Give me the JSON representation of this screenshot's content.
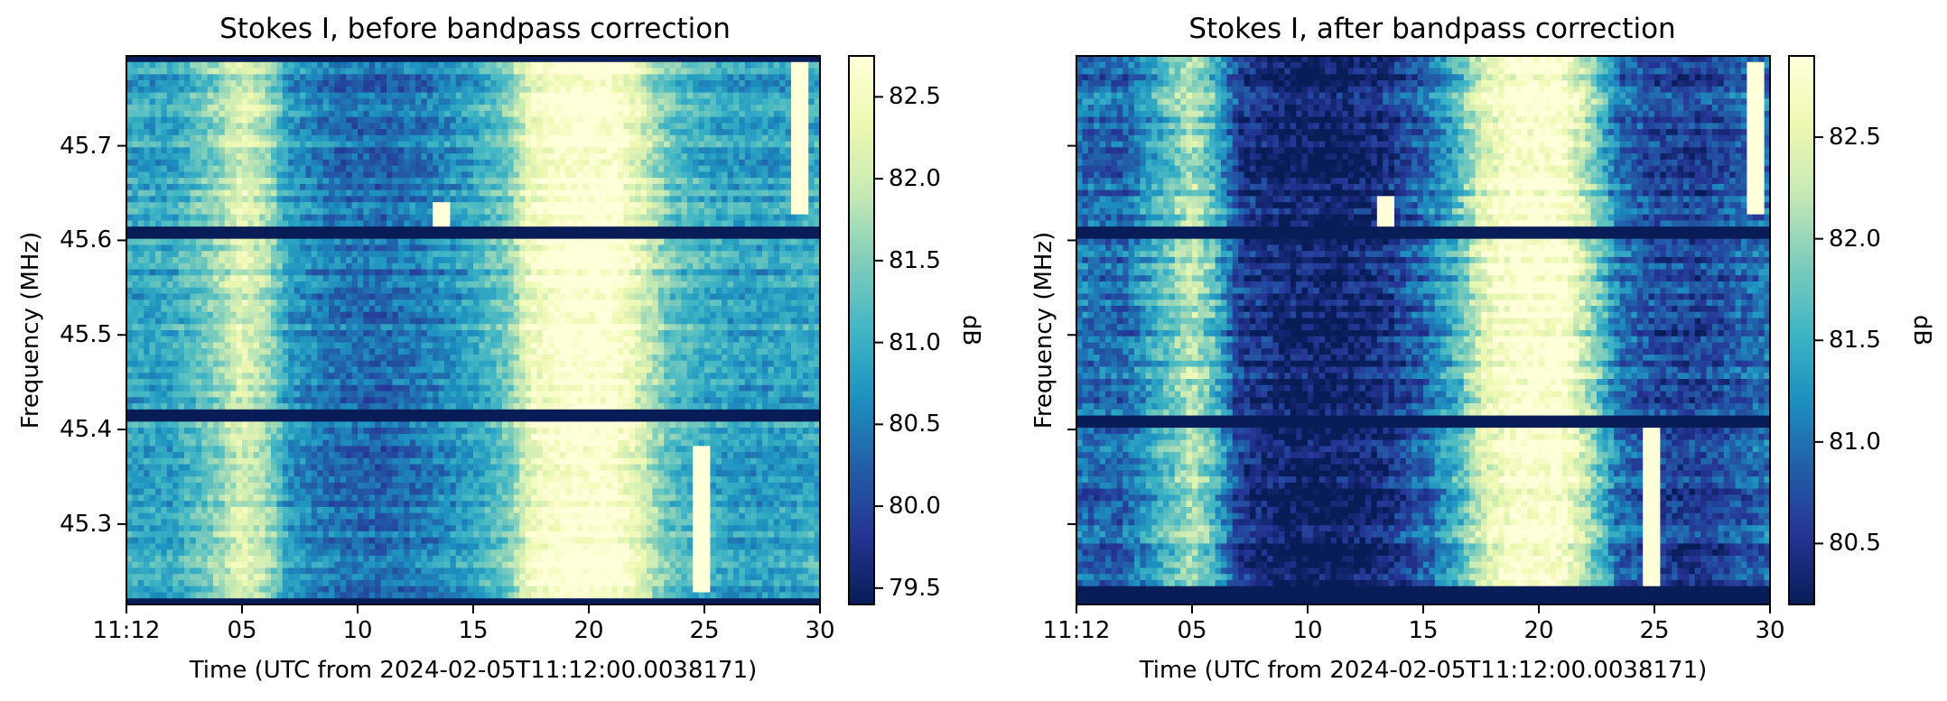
{
  "colormap": [
    "#081d58",
    "#253494",
    "#225ea8",
    "#1d91c0",
    "#41b6c4",
    "#7fcdbb",
    "#c7e9b4",
    "#edf8b1",
    "#ffffd9"
  ],
  "chart_data": [
    {
      "type": "heatmap",
      "title": "Stokes I, before bandpass correction",
      "xlabel": "Time (UTC from 2024-02-05T11:12:00.0038171)",
      "ylabel": "Frequency (MHz)",
      "colorbar_label": "dB",
      "xlim": [
        0,
        30
      ],
      "x_ticks": [
        0,
        5,
        10,
        15,
        20,
        25,
        30
      ],
      "x_tick_labels": [
        "11:12",
        "05",
        "10",
        "15",
        "20",
        "25",
        "30"
      ],
      "ylim": [
        45.215,
        45.795
      ],
      "y_ticks": [
        45.3,
        45.4,
        45.5,
        45.6,
        45.7
      ],
      "y_tick_labels": [
        "45.3",
        "45.4",
        "45.5",
        "45.6",
        "45.7"
      ],
      "clim": [
        79.4,
        82.75
      ],
      "cbar_ticks": [
        79.5,
        80.0,
        80.5,
        81.0,
        81.5,
        82.0,
        82.5
      ],
      "cbar_tick_labels": [
        "79.5",
        "80.0",
        "80.5",
        "81.0",
        "81.5",
        "82.0",
        "82.5"
      ],
      "time_profile": [
        [
          0,
          80.9
        ],
        [
          2,
          80.9
        ],
        [
          4,
          81.6
        ],
        [
          5,
          82.2
        ],
        [
          6,
          81.8
        ],
        [
          7,
          80.8
        ],
        [
          9,
          80.4
        ],
        [
          11,
          80.3
        ],
        [
          13,
          80.5
        ],
        [
          15,
          80.9
        ],
        [
          16.5,
          81.4
        ],
        [
          17.5,
          82.4
        ],
        [
          19,
          82.8
        ],
        [
          21,
          82.8
        ],
        [
          22,
          82.3
        ],
        [
          23.5,
          81.3
        ],
        [
          25,
          81.0
        ],
        [
          27,
          80.8
        ],
        [
          29,
          80.9
        ],
        [
          30,
          81.0
        ]
      ],
      "dark_bands_mhz": [
        [
          45.603,
          45.616
        ],
        [
          45.406,
          45.421
        ],
        [
          45.215,
          45.222
        ],
        [
          45.788,
          45.795
        ]
      ],
      "burst_features": [
        {
          "t": 24.9,
          "f_low": 45.225,
          "f_high": 45.385
        },
        {
          "t": 29.2,
          "f_low": 45.63,
          "f_high": 45.79
        },
        {
          "t": 13.6,
          "f_low": 45.61,
          "f_high": 45.64
        }
      ]
    },
    {
      "type": "heatmap",
      "title": "Stokes I, after bandpass correction",
      "xlabel": "Time (UTC from 2024-02-05T11:12:00.0038171)",
      "ylabel": "Frequency (MHz)",
      "colorbar_label": "dB",
      "xlim": [
        0,
        30
      ],
      "x_ticks": [
        0,
        5,
        10,
        15,
        20,
        25,
        30
      ],
      "x_tick_labels": [
        "11:12",
        "05",
        "10",
        "15",
        "20",
        "25",
        "30"
      ],
      "ylim": [
        45.215,
        45.795
      ],
      "y_ticks": [
        45.3,
        45.4,
        45.5,
        45.6,
        45.7
      ],
      "y_tick_labels": [],
      "clim": [
        80.2,
        82.9
      ],
      "cbar_ticks": [
        80.5,
        81.0,
        81.5,
        82.0,
        82.5
      ],
      "cbar_tick_labels": [
        "80.5",
        "81.0",
        "81.5",
        "82.0",
        "82.5"
      ],
      "time_profile": [
        [
          0,
          81.0
        ],
        [
          2,
          80.9
        ],
        [
          4,
          81.7
        ],
        [
          5,
          82.2
        ],
        [
          6,
          81.6
        ],
        [
          7,
          80.6
        ],
        [
          9,
          80.3
        ],
        [
          11,
          80.2
        ],
        [
          13,
          80.4
        ],
        [
          15,
          80.9
        ],
        [
          16.5,
          81.6
        ],
        [
          17.5,
          82.4
        ],
        [
          19,
          82.9
        ],
        [
          21,
          82.9
        ],
        [
          22,
          82.2
        ],
        [
          23.5,
          81.0
        ],
        [
          25,
          80.7
        ],
        [
          27,
          80.6
        ],
        [
          29,
          80.9
        ],
        [
          30,
          81.0
        ]
      ],
      "dark_bands_mhz": [
        [
          45.603,
          45.612
        ],
        [
          45.405,
          45.418
        ],
        [
          45.215,
          45.232
        ]
      ],
      "burst_features": [
        {
          "t": 24.8,
          "f_low": 45.235,
          "f_high": 45.4
        },
        {
          "t": 29.3,
          "f_low": 45.63,
          "f_high": 45.79
        },
        {
          "t": 13.4,
          "f_low": 45.6,
          "f_high": 45.65
        }
      ]
    }
  ]
}
